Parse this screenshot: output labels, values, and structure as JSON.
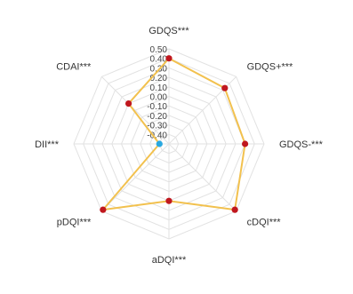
{
  "chart_data": {
    "type": "radar",
    "title": "",
    "axes": [
      "GDQS***",
      "GDQS+***",
      "GDQS-***",
      "cDQI***",
      "aDQI***",
      "pDQI***",
      "DII***",
      "CDAI***"
    ],
    "tick_labels": [
      "0.50",
      "0.40",
      "0.30",
      "0.20",
      "0.10",
      "0.00",
      "-0.10",
      "-0.20",
      "-0.30",
      "-0.40"
    ],
    "range": [
      -0.5,
      0.5
    ],
    "grid": true,
    "series": [
      {
        "values": [
          0.4,
          0.33,
          0.3,
          0.48,
          0.1,
          0.48,
          -0.4,
          0.1
        ],
        "colors": {
          "line": "#f2c14e",
          "point": "#c0171e",
          "highlight_point": "#29a8e0"
        },
        "highlight_index": 6
      }
    ]
  }
}
